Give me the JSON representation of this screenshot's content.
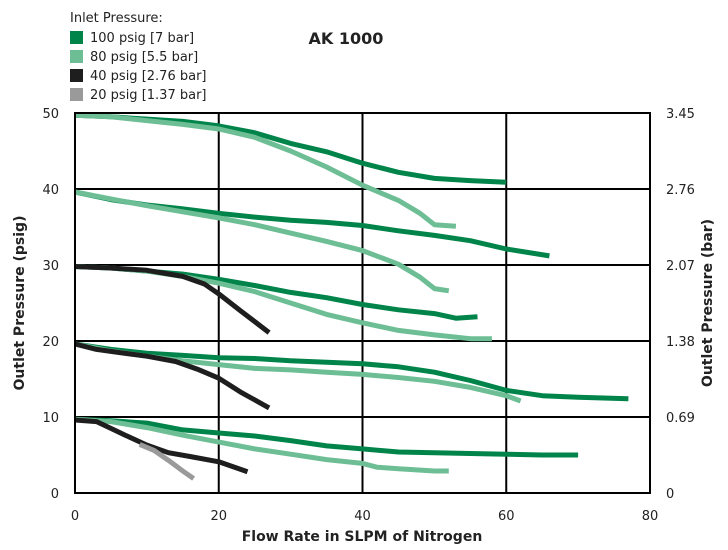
{
  "chart_data": {
    "type": "line",
    "title": "AK 1000",
    "xlabel": "Flow Rate in SLPM of Nitrogen",
    "ylabel": "Outlet Pressure (psig)",
    "y2label": "Outlet Pressure (bar)",
    "xlim": [
      0,
      80
    ],
    "ylim": [
      0,
      50
    ],
    "xticks": [
      "0",
      "20",
      "40",
      "60",
      "80"
    ],
    "yticks": [
      "0",
      "10",
      "20",
      "30",
      "40",
      "50"
    ],
    "y2ticks": [
      "0",
      "0.69",
      "1.38",
      "2.07",
      "2.76",
      "3.45"
    ],
    "grid": true,
    "legend_title": "Inlet Pressure:",
    "legend_position": "top-left",
    "legend": [
      {
        "label": "100 psig [7 bar]",
        "color": "#00844a"
      },
      {
        "label": "80 psig [5.5 bar]",
        "color": "#6dbe94"
      },
      {
        "label": "40 psig [2.76 bar]",
        "color": "#1e1e1e"
      },
      {
        "label": "20 psig [1.37 bar]",
        "color": "#9a9a9a"
      }
    ],
    "series": [
      {
        "inlet": "100 psig",
        "color": "#00844a",
        "points": [
          [
            0,
            49.7
          ],
          [
            5,
            49.5
          ],
          [
            10,
            49.2
          ],
          [
            15,
            48.9
          ],
          [
            20,
            48.3
          ],
          [
            25,
            47.4
          ],
          [
            30,
            46
          ],
          [
            35,
            44.9
          ],
          [
            40,
            43.4
          ],
          [
            45,
            42.2
          ],
          [
            50,
            41.4
          ],
          [
            55,
            41.1
          ],
          [
            60,
            40.9
          ]
        ]
      },
      {
        "inlet": "80 psig",
        "color": "#6dbe94",
        "points": [
          [
            0,
            49.7
          ],
          [
            5,
            49.5
          ],
          [
            10,
            49
          ],
          [
            15,
            48.5
          ],
          [
            20,
            47.9
          ],
          [
            25,
            46.8
          ],
          [
            30,
            45
          ],
          [
            35,
            42.9
          ],
          [
            40,
            40.5
          ],
          [
            45,
            38.5
          ],
          [
            48,
            36.8
          ],
          [
            50,
            35.3
          ],
          [
            53,
            35.1
          ]
        ]
      },
      {
        "inlet": "100 psig",
        "color": "#00844a",
        "points": [
          [
            0,
            39.6
          ],
          [
            5,
            38.6
          ],
          [
            10,
            37.9
          ],
          [
            15,
            37.4
          ],
          [
            20,
            36.8
          ],
          [
            25,
            36.3
          ],
          [
            30,
            35.9
          ],
          [
            35,
            35.6
          ],
          [
            40,
            35.2
          ],
          [
            45,
            34.5
          ],
          [
            50,
            33.9
          ],
          [
            55,
            33.2
          ],
          [
            60,
            32.1
          ],
          [
            66,
            31.2
          ]
        ]
      },
      {
        "inlet": "80 psig",
        "color": "#6dbe94",
        "points": [
          [
            0,
            39.6
          ],
          [
            5,
            38.7
          ],
          [
            10,
            37.8
          ],
          [
            15,
            37
          ],
          [
            20,
            36.2
          ],
          [
            25,
            35.3
          ],
          [
            30,
            34.2
          ],
          [
            35,
            33.1
          ],
          [
            40,
            31.9
          ],
          [
            45,
            30.1
          ],
          [
            48,
            28.4
          ],
          [
            50,
            26.9
          ],
          [
            52,
            26.6
          ]
        ]
      },
      {
        "inlet": "100 psig",
        "color": "#00844a",
        "points": [
          [
            0,
            29.8
          ],
          [
            5,
            29.6
          ],
          [
            10,
            29.2
          ],
          [
            15,
            28.8
          ],
          [
            20,
            28.1
          ],
          [
            25,
            27.3
          ],
          [
            30,
            26.4
          ],
          [
            35,
            25.7
          ],
          [
            40,
            24.8
          ],
          [
            45,
            24.1
          ],
          [
            50,
            23.6
          ],
          [
            53,
            23
          ],
          [
            56,
            23.2
          ]
        ]
      },
      {
        "inlet": "80 psig",
        "color": "#6dbe94",
        "points": [
          [
            0,
            29.8
          ],
          [
            5,
            29.6
          ],
          [
            10,
            29.2
          ],
          [
            15,
            28.5
          ],
          [
            20,
            27.6
          ],
          [
            25,
            26.5
          ],
          [
            30,
            25
          ],
          [
            35,
            23.5
          ],
          [
            40,
            22.4
          ],
          [
            45,
            21.4
          ],
          [
            50,
            20.8
          ],
          [
            55,
            20.3
          ],
          [
            58,
            20.3
          ]
        ]
      },
      {
        "inlet": "40 psig",
        "color": "#1e1e1e",
        "points": [
          [
            0,
            29.8
          ],
          [
            5,
            29.6
          ],
          [
            10,
            29.3
          ],
          [
            15,
            28.5
          ],
          [
            18,
            27.5
          ],
          [
            20,
            26.2
          ],
          [
            23,
            24
          ],
          [
            27,
            21.1
          ]
        ]
      },
      {
        "inlet": "100 psig",
        "color": "#00844a",
        "points": [
          [
            0,
            19.6
          ],
          [
            5,
            18.9
          ],
          [
            10,
            18.4
          ],
          [
            15,
            18.1
          ],
          [
            20,
            17.8
          ],
          [
            25,
            17.7
          ],
          [
            30,
            17.4
          ],
          [
            35,
            17.2
          ],
          [
            40,
            17
          ],
          [
            45,
            16.6
          ],
          [
            50,
            15.9
          ],
          [
            55,
            14.8
          ],
          [
            60,
            13.5
          ],
          [
            65,
            12.8
          ],
          [
            70,
            12.6
          ],
          [
            77,
            12.4
          ]
        ]
      },
      {
        "inlet": "80 psig",
        "color": "#6dbe94",
        "points": [
          [
            0,
            19.6
          ],
          [
            5,
            18.7
          ],
          [
            10,
            18
          ],
          [
            15,
            17.4
          ],
          [
            20,
            16.9
          ],
          [
            25,
            16.4
          ],
          [
            30,
            16.2
          ],
          [
            35,
            15.9
          ],
          [
            40,
            15.6
          ],
          [
            45,
            15.2
          ],
          [
            50,
            14.7
          ],
          [
            55,
            13.9
          ],
          [
            60,
            12.8
          ],
          [
            62,
            12.1
          ]
        ]
      },
      {
        "inlet": "40 psig",
        "color": "#1e1e1e",
        "points": [
          [
            0,
            19.6
          ],
          [
            3,
            18.9
          ],
          [
            6,
            18.5
          ],
          [
            10,
            18
          ],
          [
            14,
            17.3
          ],
          [
            17,
            16.3
          ],
          [
            20,
            15.1
          ],
          [
            23,
            13.3
          ],
          [
            27,
            11.2
          ]
        ]
      },
      {
        "inlet": "100 psig",
        "color": "#00844a",
        "points": [
          [
            0,
            9.7
          ],
          [
            5,
            9.5
          ],
          [
            10,
            9.2
          ],
          [
            15,
            8.3
          ],
          [
            20,
            7.9
          ],
          [
            25,
            7.5
          ],
          [
            30,
            6.9
          ],
          [
            35,
            6.2
          ],
          [
            40,
            5.8
          ],
          [
            45,
            5.4
          ],
          [
            50,
            5.3
          ],
          [
            55,
            5.2
          ],
          [
            60,
            5.1
          ],
          [
            65,
            5
          ],
          [
            70,
            5
          ]
        ]
      },
      {
        "inlet": "80 psig",
        "color": "#6dbe94",
        "points": [
          [
            0,
            9.7
          ],
          [
            5,
            9.4
          ],
          [
            10,
            8.6
          ],
          [
            15,
            7.6
          ],
          [
            20,
            6.7
          ],
          [
            25,
            5.8
          ],
          [
            30,
            5.1
          ],
          [
            35,
            4.4
          ],
          [
            40,
            3.9
          ],
          [
            42,
            3.4
          ],
          [
            45,
            3.2
          ],
          [
            50,
            2.9
          ],
          [
            52,
            2.9
          ]
        ]
      },
      {
        "inlet": "40 psig",
        "color": "#1e1e1e",
        "points": [
          [
            0,
            9.6
          ],
          [
            3,
            9.4
          ],
          [
            5,
            8.5
          ],
          [
            7,
            7.6
          ],
          [
            10,
            6.3
          ],
          [
            13,
            5.3
          ],
          [
            16,
            4.8
          ],
          [
            20,
            4.1
          ],
          [
            24,
            2.8
          ]
        ]
      },
      {
        "inlet": "20 psig",
        "color": "#9a9a9a",
        "points": [
          [
            9,
            6.4
          ],
          [
            11,
            5.6
          ],
          [
            13,
            4.3
          ],
          [
            15,
            2.9
          ],
          [
            16.5,
            1.9
          ]
        ]
      }
    ]
  }
}
